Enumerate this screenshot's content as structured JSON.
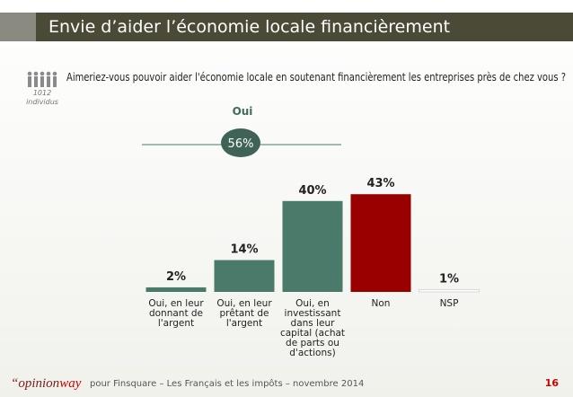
{
  "header": {
    "title": "Envie d’aider l’économie locale financièrement"
  },
  "question": "Aimeriez-vous pouvoir aider l'économie locale en soutenant financièrement les entreprises près de chez vous ?",
  "sample": {
    "count": "1012",
    "unit": "individus"
  },
  "summary": {
    "label": "Oui",
    "value_label": "56%"
  },
  "chart_data": {
    "type": "bar",
    "categories": [
      "Oui, en leur donnant de l'argent",
      "Oui, en leur prêtant de l'argent",
      "Oui, en investissant dans leur capital (achat de parts ou d'actions)",
      "Non",
      "NSP"
    ],
    "values": [
      2,
      14,
      40,
      43,
      1
    ],
    "value_labels": [
      "2%",
      "14%",
      "40%",
      "43%",
      "1%"
    ],
    "colors": [
      "#4a7a69",
      "#4a7a69",
      "#4a7a69",
      "#990000",
      "#ffffff"
    ]
  },
  "footer": {
    "logo_a": "“opinion",
    "logo_b": "way",
    "source": "pour Finsquare – Les Français et les impôts – novembre 2014",
    "page": "16"
  }
}
